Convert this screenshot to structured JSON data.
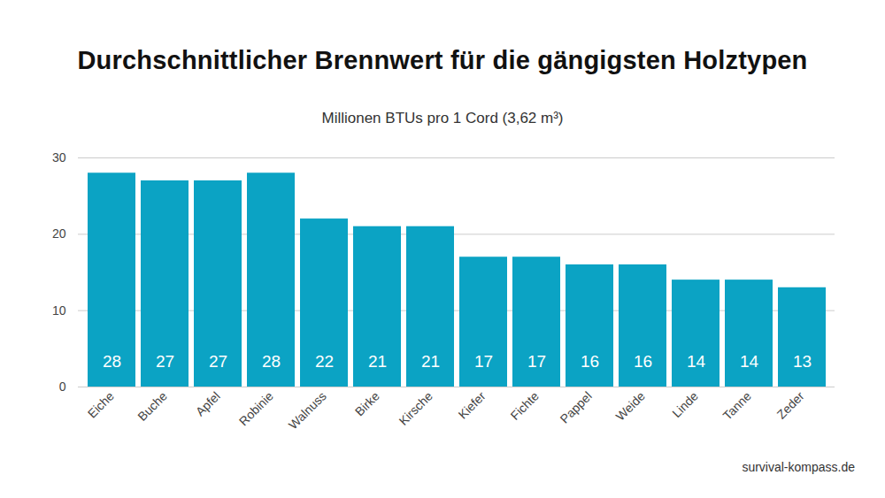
{
  "chart_data": {
    "type": "bar",
    "title": "Durchschnittlicher Brennwert für die gängigsten Holztypen",
    "subtitle": "Millionen BTUs pro 1 Cord (3,62 m³)",
    "caption": "survival-kompass.de",
    "categories": [
      "Eiche",
      "Buche",
      "Apfel",
      "Robinie",
      "Walnuss",
      "Birke",
      "Kirsche",
      "Kiefer",
      "Fichte",
      "Pappel",
      "Weide",
      "Linde",
      "Tanne",
      "Zeder"
    ],
    "values": [
      28,
      27,
      27,
      28,
      22,
      21,
      21,
      17,
      17,
      16,
      16,
      14,
      14,
      13
    ],
    "color": "#0ba3c4",
    "ylim": [
      0,
      30
    ],
    "yticks": [
      0,
      10,
      20,
      30
    ],
    "grid": true,
    "data_labels": true
  }
}
